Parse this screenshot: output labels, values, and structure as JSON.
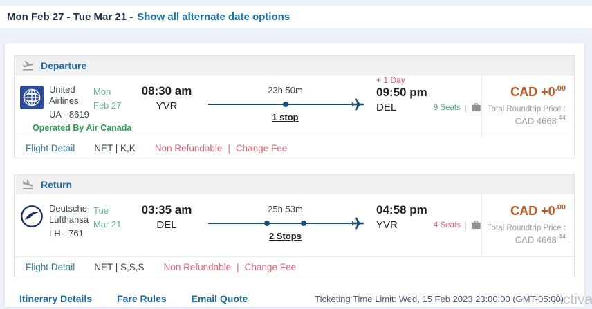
{
  "header": {
    "date_range": "Mon Feb 27 - Tue Mar 21 -",
    "alternate_link": "Show all alternate date options"
  },
  "departure": {
    "title": "Departure",
    "airline_name": "United Airlines",
    "flight_code": "UA - 8619",
    "operated_by": "Operated By Air Canada",
    "day": "Mon",
    "date": "Feb 27",
    "depart_time": "08:30 am",
    "depart_airport": "YVR",
    "duration": "23h 50m",
    "stops_label": "1 stop",
    "stops_count": 1,
    "plus_day": "+ 1 Day",
    "arrive_time": "09:50 pm",
    "arrive_airport": "DEL",
    "seats": "9 Seats",
    "price_delta": "CAD +0",
    "price_delta_cents": ".00",
    "total_label": "Total Roundtrip Price :",
    "total_price": "CAD 4668",
    "total_cents": ".44",
    "flight_detail": "Flight Detail",
    "fare_basis": "NET | K,K",
    "non_refundable": "Non Refundable",
    "footer_sep": "|",
    "change_fee": "Change Fee"
  },
  "return": {
    "title": "Return",
    "airline_name": "Deutsche Lufthansa",
    "flight_code": "LH - 761",
    "day": "Tue",
    "date": "Mar 21",
    "depart_time": "03:35 am",
    "depart_airport": "DEL",
    "duration": "25h 53m",
    "stops_label": "2 Stops",
    "stops_count": 2,
    "arrive_time": "04:58 pm",
    "arrive_airport": "YVR",
    "seats": "4 Seats",
    "price_delta": "CAD +0",
    "price_delta_cents": ".00",
    "total_label": "Total Roundtrip Price :",
    "total_price": "CAD 4668",
    "total_cents": ".44",
    "flight_detail": "Flight Detail",
    "fare_basis": "NET | S,S,S",
    "non_refundable": "Non Refundable",
    "footer_sep": "|",
    "change_fee": "Change Fee"
  },
  "bottom": {
    "itinerary_details": "Itinerary Details",
    "fare_rules": "Fare Rules",
    "email_quote": "Email Quote",
    "ticketing_limit": "Ticketing Time Limit: Wed, 15 Feb 2023 23:00:00 (GMT-05:00)"
  },
  "watermark": "Activa",
  "colors": {
    "page_background": "#edf1fa",
    "link_blue": "#1273b5",
    "section_title_blue": "#1b6ba3",
    "flight_path_navy": "#174f7c",
    "price_orange": "#c4571d",
    "date_green": "#5cb885",
    "operated_green": "#29a050",
    "seats_available_green": "#4cae77",
    "seats_low_red": "#e8606c",
    "warning_pink": "#ee5f6d",
    "plus_day_red": "#e84b57"
  }
}
